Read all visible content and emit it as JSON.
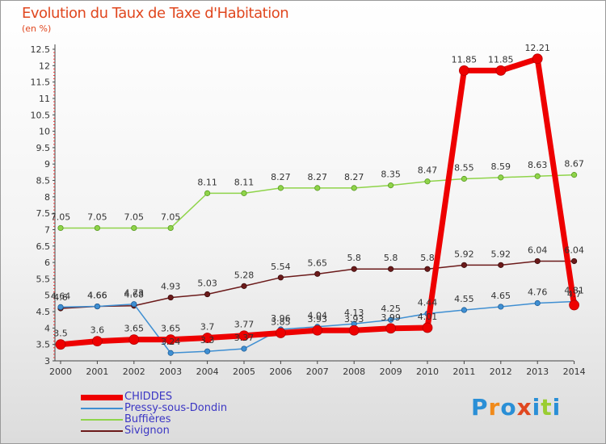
{
  "header": {
    "title": "Evolution du Taux de Taxe d'Habitation",
    "unit": "(en %)"
  },
  "logo": {
    "text": "Proxiti",
    "letter_colors": [
      "#2a8fd6",
      "#f08a1a",
      "#2a8fd6",
      "#e0471f",
      "#2a8fd6",
      "#9acd32",
      "#2a8fd6"
    ]
  },
  "chart_data": {
    "type": "line",
    "x": [
      "2000",
      "2001",
      "2002",
      "2003",
      "2004",
      "2005",
      "2006",
      "2007",
      "2008",
      "2009",
      "2010",
      "2011",
      "2012",
      "2013",
      "2014"
    ],
    "ylim": [
      3,
      12.5
    ],
    "yticks": [
      "3",
      "3.5",
      "4",
      "4.5",
      "5",
      "5.5",
      "6",
      "6.5",
      "7",
      "7.5",
      "8",
      "8.5",
      "9",
      "9.5",
      "10",
      "10.5",
      "11",
      "11.5",
      "12",
      "12.5"
    ],
    "grid": false,
    "legend_position": "bottom-left",
    "series": [
      {
        "name": "CHIDDES",
        "color": "#ee0000",
        "values": [
          3.5,
          3.6,
          3.65,
          3.65,
          3.7,
          3.77,
          3.85,
          3.93,
          3.93,
          3.99,
          4.01,
          11.85,
          11.85,
          12.21,
          4.7
        ],
        "labels": [
          "3.5",
          "3.6",
          "3.65",
          "3.65",
          "3.7",
          "3.77",
          "3.85",
          "3.93",
          "3.93",
          "3.99",
          "4.01",
          "11.85",
          "11.85",
          "12.21",
          "4.7"
        ]
      },
      {
        "name": "Pressy-sous-Dondin",
        "color": "#3f8fd2",
        "values": [
          4.64,
          4.66,
          4.73,
          3.24,
          3.29,
          3.37,
          3.96,
          4.04,
          4.13,
          4.25,
          4.44,
          4.55,
          4.65,
          4.76,
          4.81
        ],
        "labels": [
          "4.64",
          "4.66",
          "4.73",
          "3.24",
          "3.3",
          "3.37",
          "3.96",
          "4.04",
          "4.13",
          "4.25",
          "4.44",
          "4.55",
          "4.65",
          "4.76",
          "4.81"
        ]
      },
      {
        "name": "Buffières",
        "color": "#8fd44a",
        "values": [
          7.05,
          7.05,
          7.05,
          7.05,
          8.11,
          8.11,
          8.27,
          8.27,
          8.27,
          8.35,
          8.47,
          8.55,
          8.59,
          8.63,
          8.67
        ],
        "labels": [
          "7.05",
          "7.05",
          "7.05",
          "7.05",
          "8.11",
          "8.11",
          "8.27",
          "8.27",
          "8.27",
          "8.35",
          "8.47",
          "8.55",
          "8.59",
          "8.63",
          "8.67"
        ]
      },
      {
        "name": "Sivignon",
        "color": "#6b1a1a",
        "values": [
          4.6,
          4.66,
          4.68,
          4.93,
          5.03,
          5.28,
          5.54,
          5.65,
          5.8,
          5.8,
          5.8,
          5.92,
          5.92,
          6.04,
          6.04
        ],
        "labels": [
          "4.6",
          "4.66",
          "4.68",
          "4.93",
          "5.03",
          "5.28",
          "5.54",
          "5.65",
          "5.8",
          "5.8",
          "5.8",
          "5.92",
          "5.92",
          "6.04",
          "6.04"
        ]
      }
    ]
  }
}
